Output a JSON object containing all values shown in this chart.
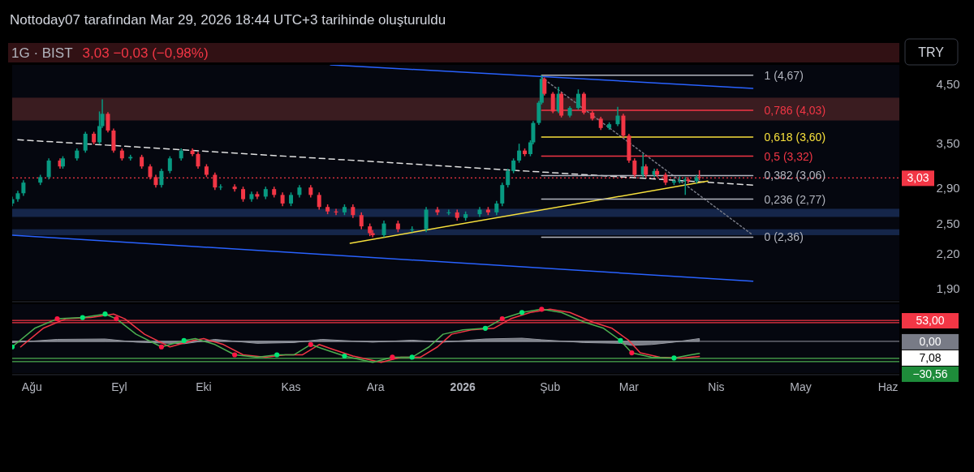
{
  "chart_data": [
    {
      "type": "candlestick",
      "title": "1G · BIST",
      "subtitle": "3,03 −0,03 (−0,98%)",
      "annotations": [
        "Nottoday07 tarafından Mar 29, 2026 18:44 UTC+3 tarihinde oluşturuldu",
        "TRY"
      ],
      "x": [
        "2025-07-25",
        "2025-07-27",
        "2025-07-29",
        "2025-08-04",
        "2025-08-07",
        "2025-08-11",
        "2025-08-12",
        "2025-08-17",
        "2025-08-20",
        "2025-08-23",
        "2025-08-25",
        "2025-08-26",
        "2025-08-28",
        "2025-08-30",
        "2025-09-02",
        "2025-09-05",
        "2025-09-09",
        "2025-09-12",
        "2025-09-14",
        "2025-09-16",
        "2025-09-19",
        "2025-09-23",
        "2025-09-27",
        "2025-09-29",
        "2025-10-02",
        "2025-10-05",
        "2025-10-07",
        "2025-10-12",
        "2025-10-15",
        "2025-10-18",
        "2025-10-20",
        "2025-10-23",
        "2025-10-26",
        "2025-10-29",
        "2025-11-01",
        "2025-11-04",
        "2025-11-08",
        "2025-11-11",
        "2025-11-14",
        "2025-11-17",
        "2025-11-20",
        "2025-11-23",
        "2025-11-26",
        "2025-11-29",
        "2025-11-30",
        "2025-12-04",
        "2025-12-09",
        "2025-12-14",
        "2025-12-19",
        "2025-12-23",
        "2025-12-27",
        "2025-12-30",
        "2026-01-02",
        "2026-01-07",
        "2026-01-10",
        "2026-01-13",
        "2026-01-15",
        "2026-01-17",
        "2026-01-19",
        "2026-01-21",
        "2026-01-23",
        "2026-01-25",
        "2026-01-26",
        "2026-01-28",
        "2026-01-29",
        "2026-01-30",
        "2026-02-02",
        "2026-02-04",
        "2026-02-05",
        "2026-02-08",
        "2026-02-11",
        "2026-02-13",
        "2026-02-16",
        "2026-02-19",
        "2026-02-22",
        "2026-02-25",
        "2026-02-27",
        "2026-03-01",
        "2026-03-03",
        "2026-03-06",
        "2026-03-07",
        "2026-03-10",
        "2026-03-11",
        "2026-03-14",
        "2026-03-17",
        "2026-03-19",
        "2026-03-21",
        "2026-03-22",
        "2026-03-25",
        "2026-03-26"
      ],
      "ohlc": [
        [
          2.72,
          2.8,
          2.69,
          2.77
        ],
        [
          2.77,
          2.87,
          2.74,
          2.84
        ],
        [
          2.84,
          3.0,
          2.81,
          2.97
        ],
        [
          2.97,
          3.07,
          2.94,
          3.04
        ],
        [
          3.04,
          3.29,
          3.01,
          3.26
        ],
        [
          3.26,
          3.29,
          3.15,
          3.18
        ],
        [
          3.18,
          3.32,
          3.15,
          3.29
        ],
        [
          3.29,
          3.43,
          3.26,
          3.4
        ],
        [
          3.4,
          3.68,
          3.37,
          3.65
        ],
        [
          3.65,
          3.68,
          3.49,
          3.52
        ],
        [
          3.52,
          4.01,
          3.49,
          3.77
        ],
        [
          3.77,
          4.22,
          3.74,
          3.97
        ],
        [
          3.97,
          4.0,
          3.67,
          3.7
        ],
        [
          3.7,
          3.73,
          3.37,
          3.4
        ],
        [
          3.4,
          3.43,
          3.26,
          3.29
        ],
        [
          3.29,
          3.34,
          3.26,
          3.31
        ],
        [
          3.31,
          3.34,
          3.15,
          3.18
        ],
        [
          3.18,
          3.21,
          3.01,
          3.04
        ],
        [
          3.04,
          3.07,
          2.91,
          2.94
        ],
        [
          2.94,
          3.15,
          2.91,
          3.12
        ],
        [
          3.12,
          3.32,
          3.09,
          3.29
        ],
        [
          3.29,
          3.43,
          3.26,
          3.4
        ],
        [
          3.4,
          3.43,
          3.32,
          3.35
        ],
        [
          3.35,
          3.38,
          3.15,
          3.18
        ],
        [
          3.18,
          3.21,
          3.04,
          3.07
        ],
        [
          3.07,
          3.1,
          2.88,
          2.91
        ],
        [
          2.91,
          2.95,
          2.88,
          2.92
        ],
        [
          2.92,
          2.95,
          2.86,
          2.89
        ],
        [
          2.89,
          2.92,
          2.74,
          2.77
        ],
        [
          2.77,
          2.86,
          2.74,
          2.83
        ],
        [
          2.83,
          2.86,
          2.77,
          2.8
        ],
        [
          2.8,
          2.92,
          2.77,
          2.89
        ],
        [
          2.89,
          2.92,
          2.79,
          2.82
        ],
        [
          2.82,
          2.85,
          2.69,
          2.72
        ],
        [
          2.72,
          2.85,
          2.69,
          2.82
        ],
        [
          2.82,
          2.94,
          2.79,
          2.91
        ],
        [
          2.91,
          2.94,
          2.79,
          2.82
        ],
        [
          2.82,
          2.85,
          2.65,
          2.68
        ],
        [
          2.68,
          2.71,
          2.6,
          2.63
        ],
        [
          2.63,
          2.66,
          2.59,
          2.62
        ],
        [
          2.62,
          2.71,
          2.59,
          2.68
        ],
        [
          2.68,
          2.71,
          2.56,
          2.59
        ],
        [
          2.59,
          2.62,
          2.44,
          2.47
        ],
        [
          2.47,
          2.5,
          2.37,
          2.4
        ],
        [
          2.4,
          2.43,
          2.36,
          2.38
        ],
        [
          2.38,
          2.53,
          2.36,
          2.5
        ],
        [
          2.5,
          2.53,
          2.41,
          2.44
        ],
        [
          2.44,
          2.47,
          2.41,
          2.44
        ],
        [
          2.44,
          2.68,
          2.41,
          2.65
        ],
        [
          2.65,
          2.68,
          2.59,
          2.62
        ],
        [
          2.62,
          2.65,
          2.59,
          2.62
        ],
        [
          2.62,
          2.65,
          2.53,
          2.56
        ],
        [
          2.56,
          2.63,
          2.53,
          2.6
        ],
        [
          2.6,
          2.68,
          2.57,
          2.65
        ],
        [
          2.65,
          2.68,
          2.59,
          2.62
        ],
        [
          2.62,
          2.75,
          2.59,
          2.72
        ],
        [
          2.72,
          2.97,
          2.69,
          2.94
        ],
        [
          2.94,
          3.15,
          2.91,
          3.12
        ],
        [
          3.12,
          3.29,
          3.09,
          3.26
        ],
        [
          3.26,
          3.5,
          3.23,
          3.4
        ],
        [
          3.4,
          3.43,
          3.32,
          3.35
        ],
        [
          3.35,
          3.55,
          3.32,
          3.52
        ],
        [
          3.52,
          3.85,
          3.49,
          3.82
        ],
        [
          3.82,
          4.19,
          3.79,
          4.16
        ],
        [
          4.16,
          4.67,
          4.13,
          4.6
        ],
        [
          4.6,
          4.63,
          4.29,
          4.32
        ],
        [
          4.32,
          4.35,
          3.98,
          4.01
        ],
        [
          4.01,
          4.45,
          3.98,
          4.32
        ],
        [
          4.32,
          4.35,
          3.91,
          3.94
        ],
        [
          3.94,
          4.1,
          3.91,
          4.07
        ],
        [
          4.07,
          4.4,
          4.04,
          4.32
        ],
        [
          4.32,
          4.35,
          3.96,
          3.99
        ],
        [
          3.99,
          4.02,
          3.86,
          3.89
        ],
        [
          3.89,
          3.92,
          3.71,
          3.74
        ],
        [
          3.74,
          3.83,
          3.71,
          3.8
        ],
        [
          3.8,
          4.09,
          3.77,
          3.94
        ],
        [
          3.94,
          3.97,
          3.59,
          3.62
        ],
        [
          3.62,
          3.65,
          3.23,
          3.26
        ],
        [
          3.26,
          3.29,
          3.04,
          3.07
        ],
        [
          3.07,
          3.35,
          3.04,
          3.18
        ],
        [
          3.18,
          3.21,
          3.04,
          3.07
        ],
        [
          3.07,
          3.15,
          3.04,
          3.12
        ],
        [
          3.12,
          3.15,
          3.04,
          3.07
        ],
        [
          3.07,
          3.1,
          2.94,
          2.97
        ],
        [
          2.97,
          3.02,
          2.94,
          2.99
        ],
        [
          2.99,
          3.05,
          2.96,
          2.99
        ],
        [
          2.99,
          3.04,
          2.82,
          3.01
        ],
        [
          3.01,
          3.04,
          2.96,
          2.99
        ],
        [
          2.99,
          3.07,
          2.96,
          3.04
        ],
        [
          3.04,
          3.13,
          3.0,
          3.03
        ]
      ],
      "colors": [
        "#089981",
        "#089981",
        "#089981",
        "#089981",
        "#089981",
        "#f23645",
        "#089981",
        "#089981",
        "#089981",
        "#f23645",
        "#089981",
        "#089981",
        "#f23645",
        "#f23645",
        "#f23645",
        "#089981",
        "#f23645",
        "#f23645",
        "#f23645",
        "#089981",
        "#089981",
        "#089981",
        "#f23645",
        "#f23645",
        "#f23645",
        "#f23645",
        "#089981",
        "#f23645",
        "#f23645",
        "#089981",
        "#f23645",
        "#089981",
        "#f23645",
        "#f23645",
        "#089981",
        "#089981",
        "#f23645",
        "#f23645",
        "#f23645",
        "#f23645",
        "#089981",
        "#f23645",
        "#f23645",
        "#f23645",
        "#f23645",
        "#089981",
        "#f23645",
        "#089981",
        "#089981",
        "#f23645",
        "#089981",
        "#f23645",
        "#089981",
        "#089981",
        "#f23645",
        "#089981",
        "#089981",
        "#089981",
        "#089981",
        "#089981",
        "#f23645",
        "#089981",
        "#089981",
        "#089981",
        "#089981",
        "#f23645",
        "#f23645",
        "#089981",
        "#f23645",
        "#089981",
        "#089981",
        "#f23645",
        "#f23645",
        "#f23645",
        "#089981",
        "#089981",
        "#f23645",
        "#f23645",
        "#f23645",
        "#089981",
        "#f23645",
        "#089981",
        "#f23645",
        "#f23645",
        "#089981",
        "#089981",
        "#089981",
        "#f23645",
        "#089981",
        "#f23645"
      ],
      "series": [
        {
          "type": "line",
          "color": "#2962ff",
          "x": [
            "2025-11-15",
            "2026-04-14"
          ],
          "values": [
            4.88,
            4.42
          ]
        },
        {
          "type": "line",
          "color": "#2962ff",
          "x": [
            "2025-07-25",
            "2026-04-14"
          ],
          "values": [
            2.38,
            1.96
          ]
        },
        {
          "type": "line",
          "color": "#e0e0e0",
          "line_style": "dashed",
          "x": [
            "2025-07-27",
            "2026-04-14"
          ],
          "values": [
            3.56,
            2.94
          ]
        },
        {
          "type": "line",
          "color": "#f7e03c",
          "x": [
            "2025-11-22",
            "2026-03-29"
          ],
          "values": [
            2.3,
            2.99
          ]
        },
        {
          "type": "line",
          "color": "#787b86",
          "line_style": "dotted",
          "x": [
            "2026-01-29",
            "2026-04-14"
          ],
          "values": [
            4.63,
            2.38
          ]
        },
        {
          "type": "line",
          "name": "1 (4,67)",
          "color": "#b2b5be",
          "x": [
            "2026-01-29",
            "2026-04-14"
          ],
          "values": [
            4.67,
            4.67
          ]
        },
        {
          "type": "line",
          "name": "0,786 (4,03)",
          "color": "#f23645",
          "x": [
            "2026-01-29",
            "2026-04-14"
          ],
          "values": [
            4.03,
            4.03
          ]
        },
        {
          "type": "line",
          "name": "0,618 (3,60)",
          "color": "#f7e03c",
          "x": [
            "2026-01-29",
            "2026-04-14"
          ],
          "values": [
            3.6,
            3.6
          ]
        },
        {
          "type": "line",
          "name": "0,5 (3,32)",
          "color": "#f23645",
          "x": [
            "2026-01-29",
            "2026-04-14"
          ],
          "values": [
            3.32,
            3.32
          ]
        },
        {
          "type": "line",
          "name": "0,382 (3,06)",
          "color": "#b2b5be",
          "x": [
            "2026-01-29",
            "2026-04-14"
          ],
          "values": [
            3.06,
            3.06
          ]
        },
        {
          "type": "line",
          "name": "0,236 (2,77)",
          "color": "#b2b5be",
          "x": [
            "2026-01-29",
            "2026-04-14"
          ],
          "values": [
            2.77,
            2.77
          ]
        },
        {
          "type": "line",
          "name": "0 (2,36)",
          "color": "#b2b5be",
          "x": [
            "2026-01-29",
            "2026-04-14"
          ],
          "values": [
            2.36,
            2.36
          ]
        }
      ],
      "bands": [
        {
          "axis": "y",
          "from": 3.86,
          "to": 4.25,
          "color": "#3a1c20"
        },
        {
          "axis": "y",
          "from": 2.57,
          "to": 2.66,
          "color": "#15264a"
        },
        {
          "axis": "y",
          "from": 2.38,
          "to": 2.44,
          "color": "#15264a"
        }
      ],
      "ref_lines": [
        {
          "axis": "y",
          "value": 3.03,
          "label": "3,03",
          "color": "#f23645",
          "line_style": "dotted"
        }
      ],
      "log": true,
      "ylim": [
        1.81,
        4.88
      ],
      "yticks": [
        {
          "value": 1.9,
          "label": "1,90"
        },
        {
          "value": 2.2,
          "label": "2,20"
        },
        {
          "value": 2.5,
          "label": "2,50"
        },
        {
          "value": 2.9,
          "label": "2,90"
        },
        {
          "value": 3.5,
          "label": "3,50"
        },
        {
          "value": 4.5,
          "label": "4,50"
        }
      ],
      "xlim": [
        "2025-07-25",
        "2026-06-05"
      ],
      "tick_labels": "y",
      "grid": false,
      "legend": false
    },
    {
      "type": "line",
      "series": [
        {
          "type": "area",
          "color": "#9598a1",
          "x": [
            "2025-07-25",
            "2025-08-10",
            "2025-08-27",
            "2025-09-07",
            "2025-09-24",
            "2025-10-05",
            "2025-10-20",
            "2025-11-02",
            "2025-11-12",
            "2025-11-30",
            "2025-12-14",
            "2025-12-25",
            "2026-01-09",
            "2026-01-22",
            "2026-01-29",
            "2026-02-13",
            "2026-02-26",
            "2026-03-02",
            "2026-03-09",
            "2026-03-17",
            "2026-03-26"
          ],
          "values": [
            -3,
            5,
            6,
            -2,
            -6,
            5,
            -5,
            -3,
            5,
            -2,
            3,
            -2,
            6,
            8,
            4,
            -3,
            -5,
            -10,
            -8,
            -2,
            7.08
          ]
        },
        {
          "type": "line",
          "color": "#f23645",
          "x": [
            "2025-07-28",
            "2025-08-05",
            "2025-08-13",
            "2025-08-22",
            "2025-08-30",
            "2025-09-03",
            "2025-09-10",
            "2025-09-19",
            "2025-09-27",
            "2025-10-01",
            "2025-10-08",
            "2025-10-15",
            "2025-10-23",
            "2025-10-30",
            "2025-11-05",
            "2025-11-11",
            "2025-11-15",
            "2025-11-23",
            "2025-12-03",
            "2025-12-10",
            "2025-12-17",
            "2025-12-23",
            "2025-12-28",
            "2026-01-04",
            "2026-01-12",
            "2026-01-18",
            "2026-01-25",
            "2026-02-01",
            "2026-02-08",
            "2026-02-16",
            "2026-02-23",
            "2026-03-01",
            "2026-03-05",
            "2026-03-12",
            "2026-03-20",
            "2026-03-26"
          ],
          "values": [
            -14,
            33,
            57,
            60,
            69,
            57,
            18,
            -14,
            2,
            7,
            -8,
            -34,
            -40,
            -34,
            -34,
            -8,
            -18,
            -37,
            -53,
            -40,
            -40,
            -14,
            18,
            29,
            33,
            57,
            73,
            81,
            73,
            49,
            33,
            2,
            -29,
            -40,
            -42,
            -38
          ]
        },
        {
          "type": "line",
          "color": "#4caf50",
          "x": [
            "2025-07-25",
            "2025-08-02",
            "2025-08-10",
            "2025-08-19",
            "2025-08-27",
            "2025-08-31",
            "2025-09-07",
            "2025-09-16",
            "2025-09-24",
            "2025-09-28",
            "2025-10-05",
            "2025-10-12",
            "2025-10-20",
            "2025-10-27",
            "2025-11-02",
            "2025-11-08",
            "2025-11-12",
            "2025-11-20",
            "2025-11-30",
            "2025-12-07",
            "2025-12-14",
            "2025-12-20",
            "2025-12-25",
            "2026-01-01",
            "2026-01-09",
            "2026-01-15",
            "2026-01-22",
            "2026-01-29",
            "2026-02-05",
            "2026-02-13",
            "2026-02-20",
            "2026-02-26",
            "2026-03-02",
            "2026-03-09",
            "2026-03-17",
            "2026-03-23",
            "2026-03-26"
          ],
          "values": [
            -14,
            33,
            57,
            60,
            69,
            57,
            18,
            -14,
            2,
            7,
            -8,
            -34,
            -40,
            -34,
            -34,
            -8,
            -18,
            -37,
            -53,
            -40,
            -40,
            -14,
            18,
            29,
            33,
            57,
            73,
            81,
            73,
            49,
            33,
            2,
            -29,
            -40,
            -42,
            -34,
            -30.56
          ]
        },
        {
          "type": "scatter",
          "marker": "circle",
          "color": "#00e676",
          "x": [
            "2025-07-25",
            "2025-08-19",
            "2025-08-27",
            "2025-09-24",
            "2025-10-27",
            "2025-11-20",
            "2025-12-14",
            "2026-01-09",
            "2026-01-22",
            "2026-02-26",
            "2026-03-17"
          ],
          "values": [
            -14,
            60,
            69,
            2,
            -34,
            -37,
            -40,
            33,
            73,
            2,
            -42
          ]
        },
        {
          "type": "scatter",
          "marker": "circle",
          "color": "#ff1744",
          "x": [
            "2025-08-10",
            "2025-08-31",
            "2025-09-16",
            "2025-10-12",
            "2025-11-08",
            "2025-12-07",
            "2026-01-15",
            "2026-01-29",
            "2026-03-02"
          ],
          "values": [
            57,
            57,
            -14,
            -34,
            -8,
            -40,
            57,
            81,
            -29
          ]
        }
      ],
      "ref_lines": [
        {
          "axis": "y",
          "value": 53,
          "color": "#f23645"
        },
        {
          "axis": "y",
          "value": 47,
          "color": "#f23645"
        },
        {
          "axis": "y",
          "value": 0,
          "color": "#787b86"
        },
        {
          "axis": "y",
          "value": -43,
          "color": "#4caf50"
        },
        {
          "axis": "y",
          "value": -51,
          "color": "#4caf50"
        }
      ],
      "annotations": [
        "7,08",
        "−30,56"
      ],
      "ylim": [
        -80,
        94
      ],
      "yticks": [
        {
          "value": 53,
          "label": "53,00"
        },
        {
          "value": 0,
          "label": "0,00"
        }
      ],
      "xlim": [
        "2025-07-25",
        "2026-06-05"
      ],
      "xticks": [
        {
          "value": "2025-08-01",
          "label": "Ağu"
        },
        {
          "value": "2025-09-01",
          "label": "Eyl"
        },
        {
          "value": "2025-10-01",
          "label": "Eki"
        },
        {
          "value": "2025-11-01",
          "label": "Kas"
        },
        {
          "value": "2025-12-01",
          "label": "Ara"
        },
        {
          "value": "2026-01-01",
          "label": "2026"
        },
        {
          "value": "2026-02-01",
          "label": "Şub"
        },
        {
          "value": "2026-03-01",
          "label": "Mar"
        },
        {
          "value": "2026-04-01",
          "label": "Nis"
        },
        {
          "value": "2026-05-01",
          "label": "May"
        },
        {
          "value": "2026-06-01",
          "label": "Haz"
        }
      ],
      "grid": false,
      "legend": false
    }
  ]
}
